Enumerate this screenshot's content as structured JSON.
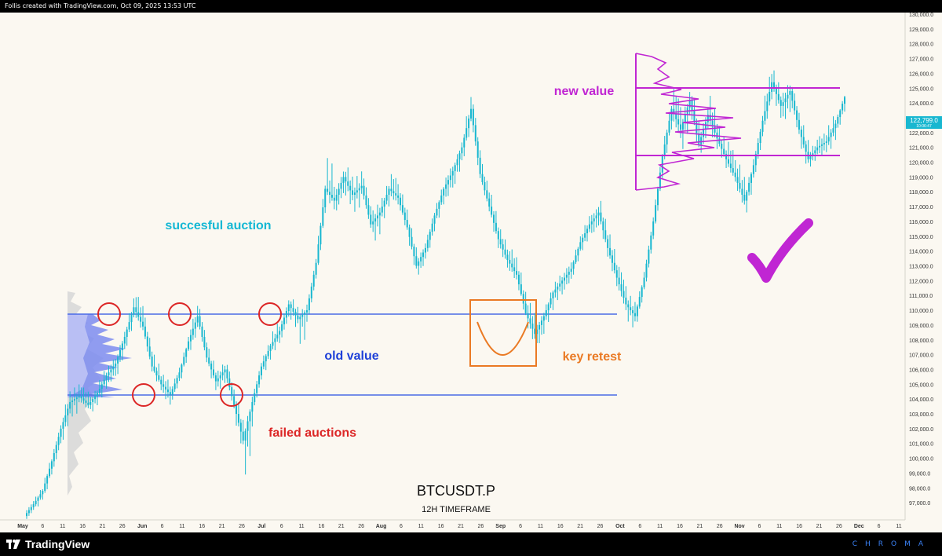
{
  "header": {
    "caption": "Follis created with TradingView.com, Oct 09, 2025 13:53 UTC"
  },
  "footer": {
    "brand": "TradingView",
    "watermark": "CHROMA"
  },
  "annotations": {
    "successful_auction": "succesful auction",
    "old_value": "old value",
    "failed_auctions": "failed auctions",
    "key_retest": "key retest",
    "new_value": "new value"
  },
  "colors": {
    "candles": "#18b7d0",
    "old_value_lines": "#4a6be6",
    "new_value": "#c026d3",
    "retest": "#ea7a24",
    "failed_markers": "#dc2626"
  },
  "chart_data": {
    "type": "candlestick",
    "title": "BTCUSDT.P",
    "subtitle": "12H TIMEFRAME",
    "current_price": "122,799.0",
    "countdown": "10:06:47",
    "ylim": [
      96000,
      130000
    ],
    "y_ticks": [
      "97,000.0",
      "98,000.0",
      "99,000.0",
      "100,000.0",
      "101,000.0",
      "102,000.0",
      "103,000.0",
      "104,000.0",
      "105,000.0",
      "106,000.0",
      "107,000.0",
      "108,000.0",
      "109,000.0",
      "110,000.0",
      "111,000.0",
      "112,000.0",
      "113,000.0",
      "114,000.0",
      "115,000.0",
      "116,000.0",
      "117,000.0",
      "118,000.0",
      "119,000.0",
      "120,000.0",
      "121,000.0",
      "122,000.0",
      "123,000.0",
      "124,000.0",
      "125,000.0",
      "126,000.0",
      "127,000.0",
      "128,000.0",
      "129,000.0",
      "130,000.0"
    ],
    "x_ticks": [
      "May",
      "6",
      "11",
      "16",
      "21",
      "26",
      "Jun",
      "6",
      "11",
      "16",
      "21",
      "26",
      "Jul",
      "6",
      "11",
      "16",
      "21",
      "26",
      "Aug",
      "6",
      "11",
      "16",
      "21",
      "26",
      "Sep",
      "6",
      "11",
      "16",
      "21",
      "26",
      "Oct",
      "6",
      "11",
      "16",
      "21",
      "26",
      "Nov",
      "6",
      "11",
      "16",
      "21",
      "26",
      "Dec",
      "6",
      "11"
    ],
    "levels": {
      "old_value_high": 109900,
      "old_value_low": 104400,
      "new_value_high": 125000,
      "new_value_low": 120500
    },
    "series": [
      {
        "values": [
          [
            96100,
            97200,
            95800,
            96900
          ],
          [
            96900,
            98100,
            96500,
            97800
          ],
          [
            97800,
            100200,
            97400,
            99800
          ],
          [
            99800,
            102400,
            99200,
            102000
          ],
          [
            102000,
            104600,
            101200,
            103800
          ],
          [
            103800,
            105000,
            102800,
            104200
          ],
          [
            104200,
            105200,
            103200,
            103600
          ],
          [
            103600,
            104800,
            102900,
            104400
          ],
          [
            104400,
            106200,
            103800,
            105600
          ],
          [
            105600,
            107000,
            104800,
            106400
          ],
          [
            106400,
            108600,
            105600,
            108200
          ],
          [
            108200,
            110800,
            107600,
            110200
          ],
          [
            110200,
            111500,
            108400,
            108900
          ],
          [
            108900,
            109600,
            105800,
            106200
          ],
          [
            106200,
            107000,
            104600,
            105000
          ],
          [
            105000,
            105800,
            103500,
            104300
          ],
          [
            104300,
            106200,
            103900,
            105800
          ],
          [
            105800,
            108200,
            105400,
            107900
          ],
          [
            107900,
            110400,
            107200,
            109600
          ],
          [
            109600,
            110200,
            106400,
            106800
          ],
          [
            106800,
            107400,
            104600,
            105200
          ],
          [
            105200,
            106600,
            104400,
            106000
          ],
          [
            106000,
            106600,
            103200,
            103600
          ],
          [
            103600,
            104400,
            100400,
            101200
          ],
          [
            101200,
            104200,
            98600,
            103800
          ],
          [
            103800,
            106600,
            103400,
            106200
          ],
          [
            106200,
            108000,
            105600,
            107600
          ],
          [
            107600,
            109400,
            107000,
            108600
          ],
          [
            108600,
            110800,
            108000,
            110400
          ],
          [
            110400,
            111000,
            108600,
            109400
          ],
          [
            109400,
            110400,
            107600,
            110000
          ],
          [
            110000,
            113600,
            109600,
            113200
          ],
          [
            113200,
            118800,
            112800,
            118200
          ],
          [
            118200,
            120400,
            116800,
            117400
          ],
          [
            117400,
            119600,
            116400,
            119000
          ],
          [
            119000,
            120000,
            116800,
            117800
          ],
          [
            117800,
            119400,
            116600,
            118400
          ],
          [
            118400,
            119200,
            115400,
            115800
          ],
          [
            115800,
            117400,
            114400,
            116600
          ],
          [
            116600,
            118800,
            115800,
            118200
          ],
          [
            118200,
            119600,
            117000,
            117600
          ],
          [
            117600,
            118400,
            115200,
            115600
          ],
          [
            115600,
            116200,
            112400,
            113000
          ],
          [
            113000,
            114600,
            112200,
            114200
          ],
          [
            114200,
            116800,
            113600,
            116400
          ],
          [
            116400,
            118600,
            115800,
            118200
          ],
          [
            118200,
            120000,
            117200,
            119400
          ],
          [
            119400,
            121400,
            118400,
            121000
          ],
          [
            121000,
            124400,
            120400,
            123600
          ],
          [
            123600,
            124200,
            118600,
            119200
          ],
          [
            119200,
            120000,
            116600,
            117000
          ],
          [
            117000,
            117800,
            114200,
            114800
          ],
          [
            114800,
            115600,
            112800,
            113400
          ],
          [
            113400,
            114600,
            111800,
            112400
          ],
          [
            112400,
            113200,
            109400,
            109800
          ],
          [
            109800,
            111000,
            107600,
            108400
          ],
          [
            108400,
            110000,
            107200,
            109600
          ],
          [
            109600,
            111600,
            108800,
            111200
          ],
          [
            111200,
            112600,
            110400,
            112000
          ],
          [
            112000,
            113400,
            111200,
            112800
          ],
          [
            112800,
            115000,
            112400,
            114600
          ],
          [
            114600,
            116400,
            114000,
            115800
          ],
          [
            115800,
            117200,
            114800,
            116600
          ],
          [
            116600,
            117400,
            113600,
            114200
          ],
          [
            114200,
            115200,
            111600,
            112200
          ],
          [
            112200,
            113400,
            109800,
            110400
          ],
          [
            110400,
            111200,
            108600,
            109600
          ],
          [
            109600,
            112600,
            109200,
            112200
          ],
          [
            112200,
            116400,
            111800,
            116000
          ],
          [
            116000,
            120800,
            115600,
            120400
          ],
          [
            120400,
            124200,
            119800,
            123600
          ],
          [
            123600,
            125600,
            121400,
            122200
          ],
          [
            122200,
            124800,
            120800,
            124200
          ],
          [
            124200,
            125000,
            120600,
            121200
          ],
          [
            121200,
            123800,
            120400,
            123200
          ],
          [
            123200,
            124600,
            120800,
            121600
          ],
          [
            121600,
            122400,
            119600,
            120200
          ],
          [
            120200,
            121800,
            118600,
            119000
          ],
          [
            119000,
            120400,
            116800,
            117400
          ],
          [
            117400,
            120200,
            116600,
            119800
          ],
          [
            119800,
            123200,
            119200,
            122800
          ],
          [
            122800,
            126600,
            122200,
            125400
          ],
          [
            125400,
            126200,
            123000,
            123800
          ],
          [
            123800,
            125600,
            122400,
            124800
          ],
          [
            124800,
            125400,
            121600,
            122200
          ],
          [
            122200,
            123000,
            119400,
            120200
          ],
          [
            120200,
            121600,
            119600,
            121000
          ],
          [
            121000,
            122200,
            120200,
            121400
          ],
          [
            121400,
            123400,
            120600,
            122600
          ],
          [
            122600,
            124600,
            122000,
            124400
          ]
        ]
      }
    ]
  }
}
